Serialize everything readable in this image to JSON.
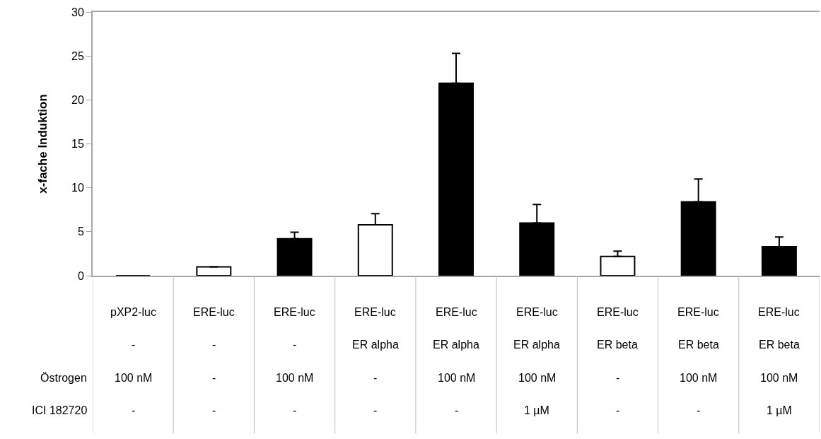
{
  "chart_data": {
    "type": "bar",
    "ylabel": "x-fache Induktion",
    "categories": [
      "pXP2-luc\n-\n100 nM\n-",
      "ERE-luc\n-\n-\n-",
      "ERE-luc\n-\n100 nM\n-",
      "ERE-luc\nER alpha\n-\n-",
      "ERE-luc\nER alpha\n100 nM\n-",
      "ERE-luc\nER alpha\n100 nM\n1 µM",
      "ERE-luc\nER beta\n-\n-",
      "ERE-luc\nER beta\n100 nM\n-",
      "ERE-luc\nER beta\n100 nM\n1 µM"
    ],
    "values": [
      0,
      1.0,
      4.2,
      5.8,
      21.9,
      6.0,
      2.2,
      8.4,
      3.3
    ],
    "colors": [
      "#000000",
      "#ffffff",
      "#000000",
      "#ffffff",
      "#000000",
      "#000000",
      "#ffffff",
      "#000000",
      "#000000"
    ],
    "errors": [
      null,
      null,
      [
        4.2,
        4.95
      ],
      [
        5.8,
        7.05
      ],
      [
        21.9,
        25.3
      ],
      [
        6.0,
        8.1
      ],
      [
        2.2,
        2.8
      ],
      [
        8.4,
        11.0
      ],
      [
        3.3,
        4.4
      ]
    ],
    "ylim": [
      0,
      30
    ],
    "yticks": [
      0,
      5,
      10,
      15,
      20,
      25,
      30
    ],
    "annotations": [
      "Östrogen",
      "ICI 182720"
    ],
    "legend": false
  }
}
